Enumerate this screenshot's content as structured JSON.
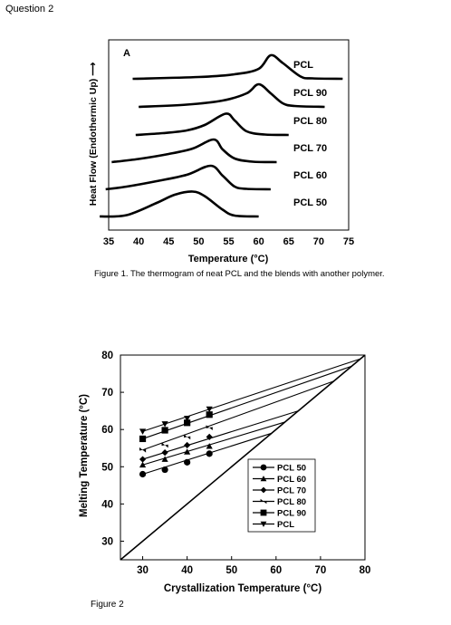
{
  "question_title": "Question 2",
  "figure1": {
    "panel_label": "A",
    "ylabel": "Heat Flow (Endothermic Up) ⟶",
    "xlabel": "Temperature (°C)",
    "caption": "Figure 1. The thermogram of neat PCL and the blends with another polymer.",
    "chart_data": {
      "type": "line",
      "x_ticks": [
        "35",
        "40",
        "45",
        "50",
        "55",
        "60",
        "65",
        "70",
        "75"
      ],
      "xlim": [
        35,
        75
      ],
      "series": [
        {
          "name": "PCL",
          "x": [
            39,
            50,
            56,
            60,
            62,
            64,
            67,
            69,
            74
          ],
          "y": [
            0.0,
            0.04,
            0.1,
            0.22,
            0.52,
            0.35,
            0.05,
            0.01,
            0.0
          ]
        },
        {
          "name": "PCL 90",
          "x": [
            40,
            48,
            54,
            58,
            60,
            62,
            64,
            66,
            71
          ],
          "y": [
            0.0,
            0.05,
            0.14,
            0.3,
            0.5,
            0.3,
            0.08,
            0.02,
            0.0
          ]
        },
        {
          "name": "PCL 80",
          "x": [
            39.5,
            44,
            48,
            51,
            54.5,
            56,
            58,
            61,
            65
          ],
          "y": [
            0.0,
            0.04,
            0.1,
            0.22,
            0.47,
            0.32,
            0.08,
            0.01,
            0.0
          ]
        },
        {
          "name": "PCL 70",
          "x": [
            35.5,
            40,
            45,
            49,
            52.5,
            54,
            56,
            59,
            63
          ],
          "y": [
            0.0,
            0.07,
            0.18,
            0.3,
            0.5,
            0.28,
            0.08,
            0.01,
            0.0
          ]
        },
        {
          "name": "PCL 60",
          "x": [
            34.5,
            38,
            43,
            48,
            52,
            54,
            56,
            58,
            62
          ],
          "y": [
            0.0,
            0.06,
            0.18,
            0.32,
            0.52,
            0.3,
            0.06,
            0.01,
            0.0
          ]
        },
        {
          "name": "PCL 50",
          "x": [
            33.5,
            38,
            43,
            46,
            49,
            51,
            54,
            56,
            60
          ],
          "y": [
            0.0,
            0.03,
            0.3,
            0.48,
            0.55,
            0.45,
            0.15,
            0.02,
            0.0
          ]
        }
      ]
    }
  },
  "figure2": {
    "ylabel": "Melting Temperature (°C)",
    "xlabel": "Crystallization Temperature (°C)",
    "caption": "Figure 2",
    "chart_data": {
      "type": "scatter",
      "xlim": [
        25,
        80
      ],
      "ylim": [
        25,
        80
      ],
      "x_ticks": [
        "30",
        "40",
        "50",
        "60",
        "70",
        "80"
      ],
      "y_ticks": [
        "30",
        "40",
        "50",
        "60",
        "70",
        "80"
      ],
      "series": [
        {
          "name": "PCL 50",
          "marker": "circle",
          "x": [
            30,
            35,
            40,
            45
          ],
          "y": [
            48,
            49.2,
            51.2,
            53.5
          ]
        },
        {
          "name": "PCL 60",
          "marker": "triangle-up",
          "x": [
            30,
            35,
            40,
            45
          ],
          "y": [
            50.5,
            52,
            54,
            55.5
          ]
        },
        {
          "name": "PCL 70",
          "marker": "diamond",
          "x": [
            30,
            35,
            40,
            45
          ],
          "y": [
            52,
            53.8,
            55.8,
            58
          ]
        },
        {
          "name": "PCL 80",
          "marker": "bowtie",
          "x": [
            30,
            35,
            40,
            45
          ],
          "y": [
            54.5,
            55.8,
            58,
            60.5
          ]
        },
        {
          "name": "PCL 90",
          "marker": "square",
          "x": [
            30,
            35,
            40,
            45
          ],
          "y": [
            57.5,
            59.8,
            61.8,
            64
          ]
        },
        {
          "name": "PCL",
          "marker": "triangle-down",
          "x": [
            30,
            35,
            40,
            45
          ],
          "y": [
            59.5,
            61.5,
            63,
            65.5
          ]
        }
      ],
      "extrapolation_lines_to": [
        {
          "name": "PCL 50",
          "x": 59,
          "y": 59
        },
        {
          "name": "PCL 60",
          "x": 62,
          "y": 62
        },
        {
          "name": "PCL 70",
          "x": 65,
          "y": 65
        },
        {
          "name": "PCL 80",
          "x": 73,
          "y": 73
        },
        {
          "name": "PCL 90",
          "x": 77,
          "y": 77
        },
        {
          "name": "PCL",
          "x": 79,
          "y": 79
        }
      ],
      "reference_line": {
        "from": [
          25,
          25
        ],
        "to": [
          80,
          80
        ]
      },
      "legend_position": "lower-right"
    }
  }
}
